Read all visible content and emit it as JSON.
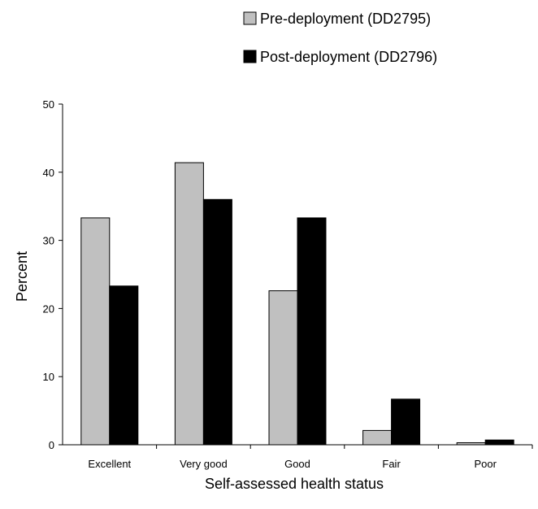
{
  "chart_data": {
    "type": "bar",
    "categories": [
      "Excellent",
      "Very good",
      "Good",
      "Fair",
      "Poor"
    ],
    "series": [
      {
        "name": "Pre-deployment (DD2795)",
        "values": [
          33.3,
          41.4,
          22.6,
          2.1,
          0.3
        ],
        "color": "#c0c0c0"
      },
      {
        "name": "Post-deployment (DD2796)",
        "values": [
          23.3,
          36.0,
          33.3,
          6.7,
          0.7
        ],
        "color": "#000000"
      }
    ],
    "title": "",
    "xlabel": "Self-assessed health status",
    "ylabel": "Percent",
    "ylim": [
      0,
      50
    ],
    "yticks": [
      "0",
      "10",
      "20",
      "30",
      "40",
      "50"
    ],
    "grid": false,
    "legend_position": "top-right"
  }
}
